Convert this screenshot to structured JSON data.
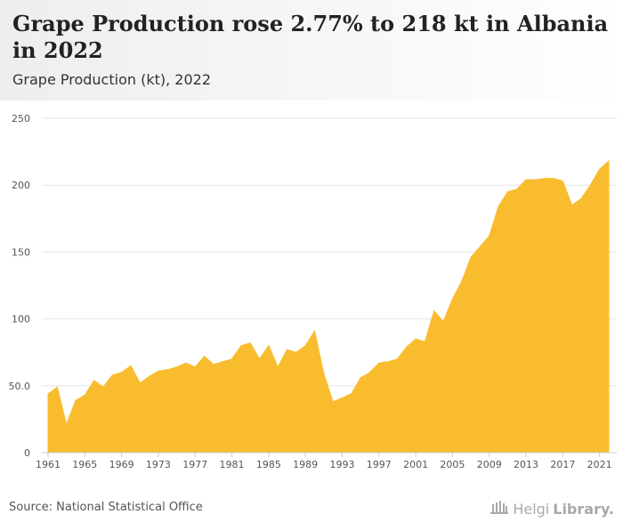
{
  "header": {
    "title": "Grape Production rose 2.77% to 218 kt in Albania in 2022",
    "subtitle": "Grape Production (kt), 2022"
  },
  "footer": {
    "source": "Source: National Statistical Office",
    "logo_text_1": "Helgi",
    "logo_text_2": "Library."
  },
  "colors": {
    "area_fill": "#F9BC2F",
    "grid": "#e6e6e6",
    "tick_text": "#555555"
  },
  "chart_data": {
    "type": "area",
    "x": [
      1961,
      1962,
      1963,
      1964,
      1965,
      1966,
      1967,
      1968,
      1969,
      1970,
      1971,
      1972,
      1973,
      1974,
      1975,
      1976,
      1977,
      1978,
      1979,
      1980,
      1981,
      1982,
      1983,
      1984,
      1985,
      1986,
      1987,
      1988,
      1989,
      1990,
      1991,
      1992,
      1993,
      1994,
      1995,
      1996,
      1997,
      1998,
      1999,
      2000,
      2001,
      2002,
      2003,
      2004,
      2005,
      2006,
      2007,
      2008,
      2009,
      2010,
      2011,
      2012,
      2013,
      2014,
      2015,
      2016,
      2017,
      2018,
      2019,
      2020,
      2021,
      2022
    ],
    "series": [
      {
        "values": [
          44,
          49,
          21,
          39,
          43,
          54,
          49,
          58,
          60,
          65,
          52,
          57,
          61,
          62,
          64,
          67,
          64,
          72,
          66,
          68,
          70,
          80,
          82,
          70,
          80,
          64,
          77,
          75,
          80,
          91,
          59,
          38,
          41,
          44,
          56,
          60,
          67,
          68,
          70,
          79,
          85,
          83,
          106,
          98,
          115,
          128,
          146,
          154,
          162,
          184,
          195,
          197,
          204,
          204,
          205,
          205,
          203,
          185,
          190,
          200,
          212,
          218
        ]
      }
    ],
    "xticks": [
      "1961",
      "1965",
      "1969",
      "1973",
      "1977",
      "1981",
      "1985",
      "1989",
      "1993",
      "1997",
      "2001",
      "2005",
      "2009",
      "2013",
      "2017",
      "2021"
    ],
    "yticks": [
      "0",
      "50.0",
      "100",
      "150",
      "200",
      "250"
    ],
    "ylim": [
      0,
      250
    ],
    "xlim": [
      1961,
      2022
    ],
    "grid": true,
    "legend": "none"
  }
}
